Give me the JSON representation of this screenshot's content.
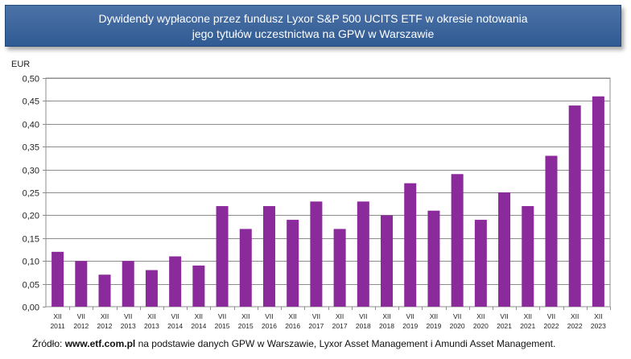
{
  "chart_data": {
    "type": "bar",
    "title_lines": [
      "Dywidendy wypłacone przez fundusz Lyxor S&P 500 UCITS ETF w okresie notowania",
      "jego tytułów  uczestnictwa na GPW w Warszawie"
    ],
    "ylabel": "EUR",
    "xlabel": "",
    "ylim": [
      0,
      0.5
    ],
    "yticks": [
      "0,00",
      "0,05",
      "0,10",
      "0,15",
      "0,20",
      "0,25",
      "0,30",
      "0,35",
      "0,40",
      "0,45",
      "0,50"
    ],
    "grid": true,
    "bar_color": "#8b2a9b",
    "categories": [
      {
        "month": "XII",
        "year": "2011"
      },
      {
        "month": "VII",
        "year": "2012"
      },
      {
        "month": "XII",
        "year": "2012"
      },
      {
        "month": "VII",
        "year": "2013"
      },
      {
        "month": "XII",
        "year": "2013"
      },
      {
        "month": "VII",
        "year": "2014"
      },
      {
        "month": "XII",
        "year": "2014"
      },
      {
        "month": "VII",
        "year": "2015"
      },
      {
        "month": "XII",
        "year": "2015"
      },
      {
        "month": "VII",
        "year": "2016"
      },
      {
        "month": "XII",
        "year": "2016"
      },
      {
        "month": "VII",
        "year": "2017"
      },
      {
        "month": "XII",
        "year": "2017"
      },
      {
        "month": "VII",
        "year": "2018"
      },
      {
        "month": "XII",
        "year": "2018"
      },
      {
        "month": "VII",
        "year": "2019"
      },
      {
        "month": "XII",
        "year": "2019"
      },
      {
        "month": "VII",
        "year": "2020"
      },
      {
        "month": "XII",
        "year": "2020"
      },
      {
        "month": "VII",
        "year": "2021"
      },
      {
        "month": "XII",
        "year": "2021"
      },
      {
        "month": "VII",
        "year": "2022"
      },
      {
        "month": "XII",
        "year": "2022"
      },
      {
        "month": "XII",
        "year": "2023"
      }
    ],
    "values": [
      0.12,
      0.1,
      0.07,
      0.1,
      0.08,
      0.11,
      0.09,
      0.22,
      0.17,
      0.22,
      0.19,
      0.23,
      0.17,
      0.23,
      0.2,
      0.27,
      0.21,
      0.29,
      0.19,
      0.25,
      0.22,
      0.33,
      0.44,
      0.46
    ]
  },
  "source": {
    "prefix": "Źródło:",
    "site": "www.etf.com.pl",
    "text": "na podstawie danych GPW w Warszawie, Lyxor Asset Management  i Amundi  Asset Management."
  }
}
